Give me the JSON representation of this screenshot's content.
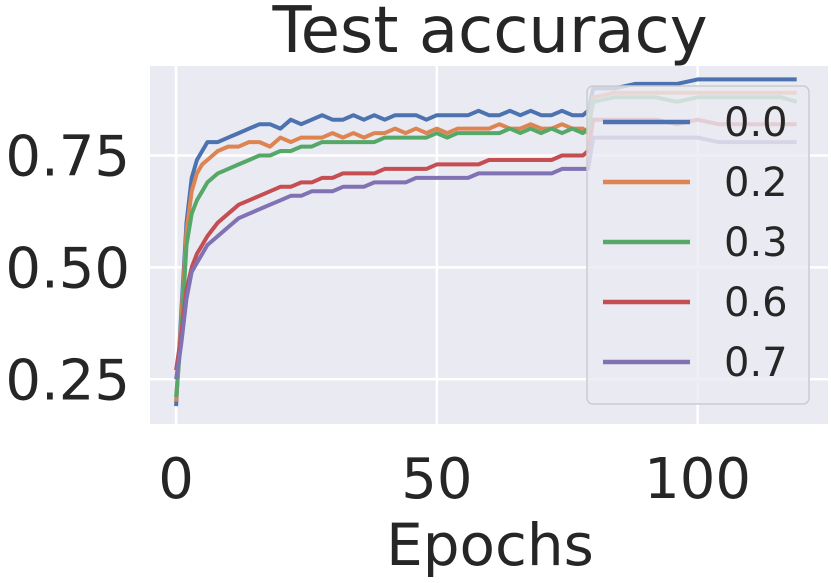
{
  "chart_data": {
    "type": "line",
    "title": "Test accuracy",
    "xlabel": "Epochs",
    "ylabel": "",
    "xlim": [
      -5,
      125
    ],
    "ylim": [
      0.15,
      0.95
    ],
    "x_ticks": [
      0,
      50,
      100
    ],
    "x_tick_labels": [
      "0",
      "50",
      "100"
    ],
    "y_ticks": [
      0.25,
      0.5,
      0.75
    ],
    "y_tick_labels": [
      "0.25",
      "0.50",
      "0.75"
    ],
    "grid": true,
    "legend_position": "top-right",
    "series": [
      {
        "name": "0.0",
        "color": "#4c72b0",
        "points": [
          [
            0,
            0.19
          ],
          [
            1,
            0.4
          ],
          [
            2,
            0.6
          ],
          [
            3,
            0.7
          ],
          [
            4,
            0.74
          ],
          [
            5,
            0.76
          ],
          [
            6,
            0.78
          ],
          [
            8,
            0.78
          ],
          [
            10,
            0.79
          ],
          [
            12,
            0.8
          ],
          [
            14,
            0.81
          ],
          [
            16,
            0.82
          ],
          [
            18,
            0.82
          ],
          [
            20,
            0.81
          ],
          [
            22,
            0.83
          ],
          [
            24,
            0.82
          ],
          [
            26,
            0.83
          ],
          [
            28,
            0.84
          ],
          [
            30,
            0.83
          ],
          [
            32,
            0.83
          ],
          [
            34,
            0.84
          ],
          [
            36,
            0.83
          ],
          [
            38,
            0.84
          ],
          [
            40,
            0.83
          ],
          [
            42,
            0.84
          ],
          [
            44,
            0.84
          ],
          [
            46,
            0.84
          ],
          [
            48,
            0.83
          ],
          [
            50,
            0.84
          ],
          [
            52,
            0.84
          ],
          [
            54,
            0.84
          ],
          [
            56,
            0.84
          ],
          [
            58,
            0.85
          ],
          [
            60,
            0.84
          ],
          [
            62,
            0.84
          ],
          [
            64,
            0.85
          ],
          [
            66,
            0.84
          ],
          [
            68,
            0.85
          ],
          [
            70,
            0.84
          ],
          [
            72,
            0.84
          ],
          [
            74,
            0.85
          ],
          [
            76,
            0.84
          ],
          [
            78,
            0.84
          ],
          [
            79,
            0.85
          ],
          [
            80,
            0.9
          ],
          [
            84,
            0.9
          ],
          [
            88,
            0.91
          ],
          [
            92,
            0.91
          ],
          [
            96,
            0.91
          ],
          [
            100,
            0.92
          ],
          [
            104,
            0.92
          ],
          [
            108,
            0.92
          ],
          [
            112,
            0.92
          ],
          [
            116,
            0.92
          ],
          [
            119,
            0.92
          ]
        ]
      },
      {
        "name": "0.2",
        "color": "#dd8452",
        "points": [
          [
            0,
            0.2
          ],
          [
            1,
            0.38
          ],
          [
            2,
            0.58
          ],
          [
            3,
            0.67
          ],
          [
            4,
            0.71
          ],
          [
            5,
            0.73
          ],
          [
            6,
            0.74
          ],
          [
            8,
            0.76
          ],
          [
            10,
            0.77
          ],
          [
            12,
            0.77
          ],
          [
            14,
            0.78
          ],
          [
            16,
            0.78
          ],
          [
            18,
            0.77
          ],
          [
            20,
            0.79
          ],
          [
            22,
            0.78
          ],
          [
            24,
            0.79
          ],
          [
            26,
            0.79
          ],
          [
            28,
            0.79
          ],
          [
            30,
            0.8
          ],
          [
            32,
            0.79
          ],
          [
            34,
            0.8
          ],
          [
            36,
            0.79
          ],
          [
            38,
            0.8
          ],
          [
            40,
            0.8
          ],
          [
            42,
            0.81
          ],
          [
            44,
            0.8
          ],
          [
            46,
            0.81
          ],
          [
            48,
            0.8
          ],
          [
            50,
            0.81
          ],
          [
            52,
            0.8
          ],
          [
            54,
            0.81
          ],
          [
            56,
            0.81
          ],
          [
            58,
            0.81
          ],
          [
            60,
            0.81
          ],
          [
            62,
            0.82
          ],
          [
            64,
            0.81
          ],
          [
            66,
            0.81
          ],
          [
            68,
            0.82
          ],
          [
            70,
            0.81
          ],
          [
            72,
            0.81
          ],
          [
            74,
            0.82
          ],
          [
            76,
            0.81
          ],
          [
            78,
            0.81
          ],
          [
            79,
            0.8
          ],
          [
            80,
            0.88
          ],
          [
            84,
            0.89
          ],
          [
            88,
            0.89
          ],
          [
            92,
            0.89
          ],
          [
            96,
            0.89
          ],
          [
            100,
            0.89
          ],
          [
            104,
            0.89
          ],
          [
            108,
            0.89
          ],
          [
            112,
            0.89
          ],
          [
            116,
            0.89
          ],
          [
            119,
            0.89
          ]
        ]
      },
      {
        "name": "0.3",
        "color": "#55a868",
        "points": [
          [
            0,
            0.21
          ],
          [
            1,
            0.35
          ],
          [
            2,
            0.55
          ],
          [
            3,
            0.62
          ],
          [
            4,
            0.65
          ],
          [
            5,
            0.67
          ],
          [
            6,
            0.69
          ],
          [
            8,
            0.71
          ],
          [
            10,
            0.72
          ],
          [
            12,
            0.73
          ],
          [
            14,
            0.74
          ],
          [
            16,
            0.75
          ],
          [
            18,
            0.75
          ],
          [
            20,
            0.76
          ],
          [
            22,
            0.76
          ],
          [
            24,
            0.77
          ],
          [
            26,
            0.77
          ],
          [
            28,
            0.78
          ],
          [
            30,
            0.78
          ],
          [
            32,
            0.78
          ],
          [
            34,
            0.78
          ],
          [
            36,
            0.78
          ],
          [
            38,
            0.78
          ],
          [
            40,
            0.79
          ],
          [
            42,
            0.79
          ],
          [
            44,
            0.79
          ],
          [
            46,
            0.79
          ],
          [
            48,
            0.79
          ],
          [
            50,
            0.8
          ],
          [
            52,
            0.79
          ],
          [
            54,
            0.8
          ],
          [
            56,
            0.8
          ],
          [
            58,
            0.8
          ],
          [
            60,
            0.8
          ],
          [
            62,
            0.8
          ],
          [
            64,
            0.81
          ],
          [
            66,
            0.8
          ],
          [
            68,
            0.81
          ],
          [
            70,
            0.8
          ],
          [
            72,
            0.81
          ],
          [
            74,
            0.8
          ],
          [
            76,
            0.81
          ],
          [
            78,
            0.8
          ],
          [
            79,
            0.81
          ],
          [
            80,
            0.87
          ],
          [
            84,
            0.88
          ],
          [
            88,
            0.88
          ],
          [
            92,
            0.88
          ],
          [
            96,
            0.87
          ],
          [
            100,
            0.88
          ],
          [
            104,
            0.88
          ],
          [
            108,
            0.88
          ],
          [
            112,
            0.88
          ],
          [
            116,
            0.88
          ],
          [
            119,
            0.87
          ]
        ]
      },
      {
        "name": "0.6",
        "color": "#c44e52",
        "points": [
          [
            0,
            0.27
          ],
          [
            1,
            0.35
          ],
          [
            2,
            0.45
          ],
          [
            3,
            0.5
          ],
          [
            4,
            0.53
          ],
          [
            5,
            0.55
          ],
          [
            6,
            0.57
          ],
          [
            8,
            0.6
          ],
          [
            10,
            0.62
          ],
          [
            12,
            0.64
          ],
          [
            14,
            0.65
          ],
          [
            16,
            0.66
          ],
          [
            18,
            0.67
          ],
          [
            20,
            0.68
          ],
          [
            22,
            0.68
          ],
          [
            24,
            0.69
          ],
          [
            26,
            0.69
          ],
          [
            28,
            0.7
          ],
          [
            30,
            0.7
          ],
          [
            32,
            0.71
          ],
          [
            34,
            0.71
          ],
          [
            36,
            0.71
          ],
          [
            38,
            0.71
          ],
          [
            40,
            0.72
          ],
          [
            42,
            0.72
          ],
          [
            44,
            0.72
          ],
          [
            46,
            0.72
          ],
          [
            48,
            0.72
          ],
          [
            50,
            0.73
          ],
          [
            52,
            0.73
          ],
          [
            54,
            0.73
          ],
          [
            56,
            0.73
          ],
          [
            58,
            0.73
          ],
          [
            60,
            0.74
          ],
          [
            62,
            0.74
          ],
          [
            64,
            0.74
          ],
          [
            66,
            0.74
          ],
          [
            68,
            0.74
          ],
          [
            70,
            0.74
          ],
          [
            72,
            0.74
          ],
          [
            74,
            0.75
          ],
          [
            76,
            0.75
          ],
          [
            78,
            0.75
          ],
          [
            79,
            0.76
          ],
          [
            80,
            0.83
          ],
          [
            84,
            0.83
          ],
          [
            88,
            0.83
          ],
          [
            92,
            0.83
          ],
          [
            96,
            0.82
          ],
          [
            100,
            0.83
          ],
          [
            104,
            0.82
          ],
          [
            108,
            0.82
          ],
          [
            112,
            0.82
          ],
          [
            116,
            0.82
          ],
          [
            119,
            0.82
          ]
        ]
      },
      {
        "name": "0.7",
        "color": "#8172b3",
        "points": [
          [
            0,
            0.25
          ],
          [
            1,
            0.33
          ],
          [
            2,
            0.43
          ],
          [
            3,
            0.49
          ],
          [
            4,
            0.51
          ],
          [
            5,
            0.53
          ],
          [
            6,
            0.55
          ],
          [
            8,
            0.57
          ],
          [
            10,
            0.59
          ],
          [
            12,
            0.61
          ],
          [
            14,
            0.62
          ],
          [
            16,
            0.63
          ],
          [
            18,
            0.64
          ],
          [
            20,
            0.65
          ],
          [
            22,
            0.66
          ],
          [
            24,
            0.66
          ],
          [
            26,
            0.67
          ],
          [
            28,
            0.67
          ],
          [
            30,
            0.67
          ],
          [
            32,
            0.68
          ],
          [
            34,
            0.68
          ],
          [
            36,
            0.68
          ],
          [
            38,
            0.69
          ],
          [
            40,
            0.69
          ],
          [
            42,
            0.69
          ],
          [
            44,
            0.69
          ],
          [
            46,
            0.7
          ],
          [
            48,
            0.7
          ],
          [
            50,
            0.7
          ],
          [
            52,
            0.7
          ],
          [
            54,
            0.7
          ],
          [
            56,
            0.7
          ],
          [
            58,
            0.71
          ],
          [
            60,
            0.71
          ],
          [
            62,
            0.71
          ],
          [
            64,
            0.71
          ],
          [
            66,
            0.71
          ],
          [
            68,
            0.71
          ],
          [
            70,
            0.71
          ],
          [
            72,
            0.71
          ],
          [
            74,
            0.72
          ],
          [
            76,
            0.72
          ],
          [
            78,
            0.72
          ],
          [
            79,
            0.72
          ],
          [
            80,
            0.79
          ],
          [
            84,
            0.79
          ],
          [
            88,
            0.79
          ],
          [
            92,
            0.79
          ],
          [
            96,
            0.79
          ],
          [
            100,
            0.79
          ],
          [
            104,
            0.78
          ],
          [
            108,
            0.78
          ],
          [
            112,
            0.78
          ],
          [
            116,
            0.78
          ],
          [
            119,
            0.78
          ]
        ]
      }
    ]
  }
}
